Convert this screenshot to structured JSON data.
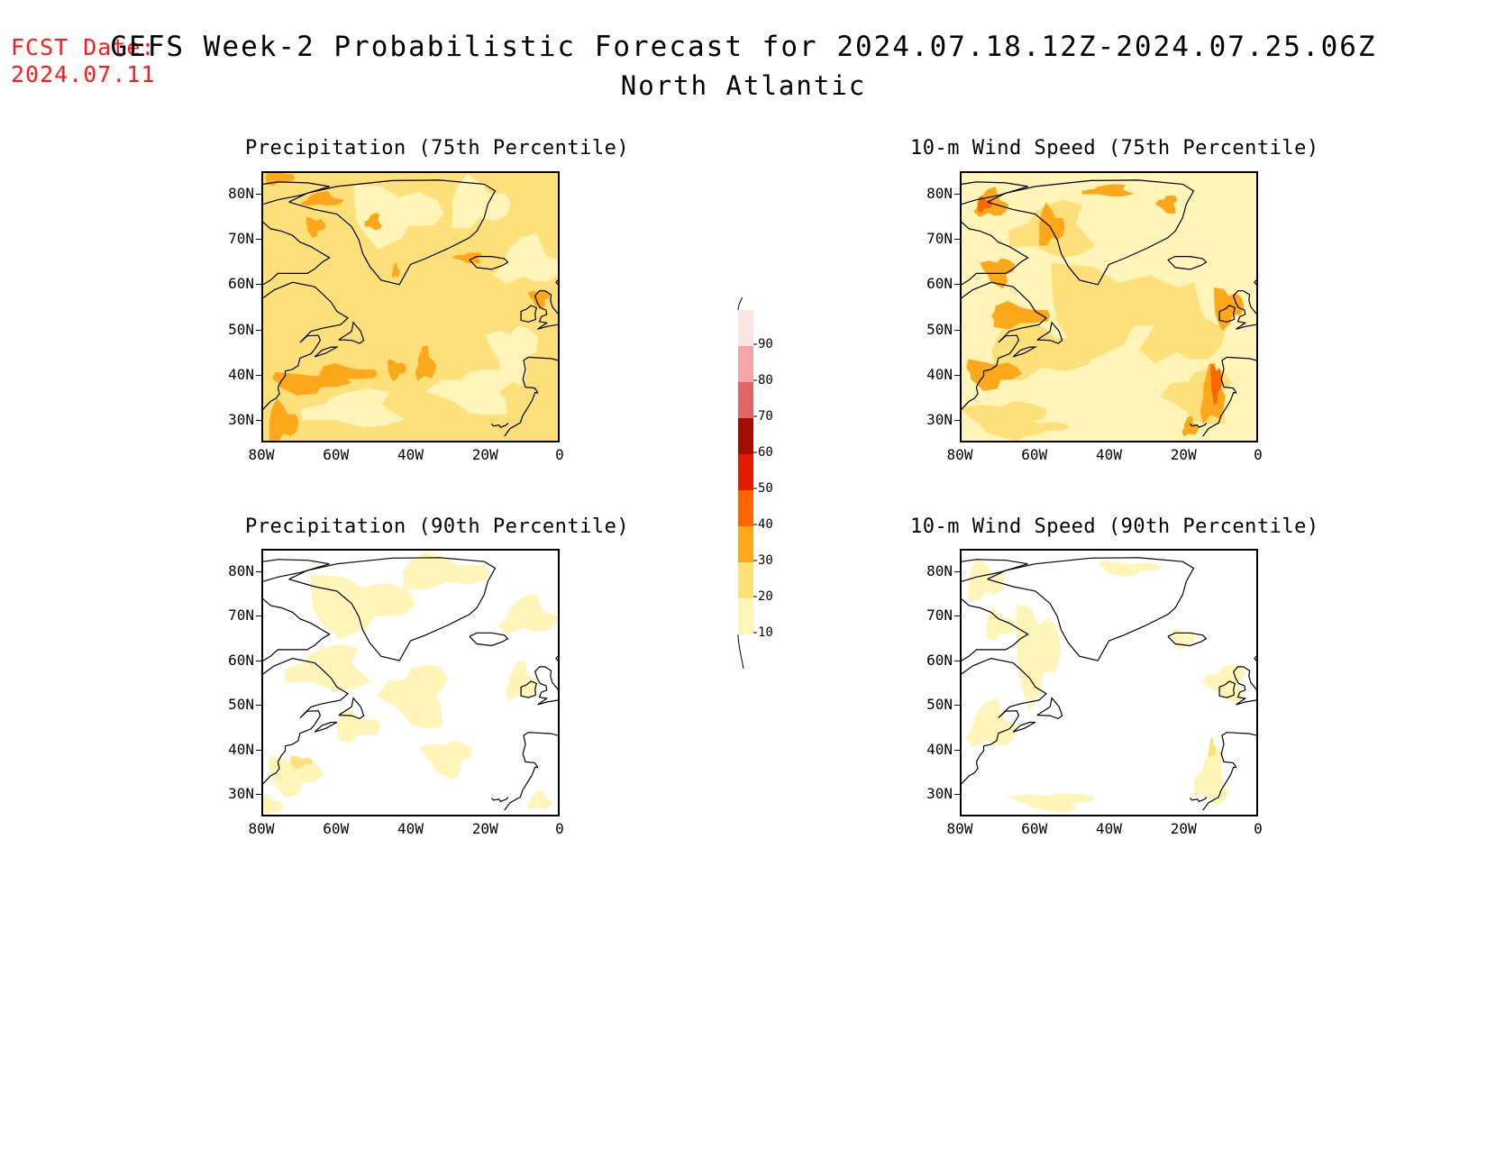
{
  "header": {
    "fcst_label": "FCST Date:",
    "fcst_date": "2024.07.11",
    "title": "GEFS Week-2 Probabilistic Forecast for 2024.07.18.12Z-2024.07.25.06Z",
    "subtitle": "North Atlantic"
  },
  "colors": {
    "10-20": "#fff5b8",
    "20-30": "#fde07a",
    "30-40": "#fda71a",
    "40-50": "#fb6600",
    "50-60": "#e41a00",
    "60-70": "#a30d00",
    "70-80": "#e06666",
    "80-90": "#f4a6a6",
    "90+": "#fde4e4",
    "coast": "#000000"
  },
  "colorbar": {
    "levels": [
      "10",
      "20",
      "30",
      "40",
      "50",
      "60",
      "70",
      "80",
      "90"
    ]
  },
  "axes": {
    "lat_labels": [
      "80N",
      "70N",
      "60N",
      "50N",
      "40N",
      "30N"
    ],
    "lon_labels": [
      "80W",
      "60W",
      "40W",
      "20W",
      "0"
    ],
    "lon_range": [
      -80,
      0
    ],
    "lat_range": [
      25,
      85
    ]
  },
  "panels": [
    {
      "title": "Precipitation (75th Percentile)",
      "intensity": "high"
    },
    {
      "title": "10-m Wind Speed (75th Percentile)",
      "intensity": "very-high"
    },
    {
      "title": "Precipitation (90th Percentile)",
      "intensity": "low"
    },
    {
      "title": "10-m Wind Speed (90th Percentile)",
      "intensity": "very-low"
    }
  ]
}
